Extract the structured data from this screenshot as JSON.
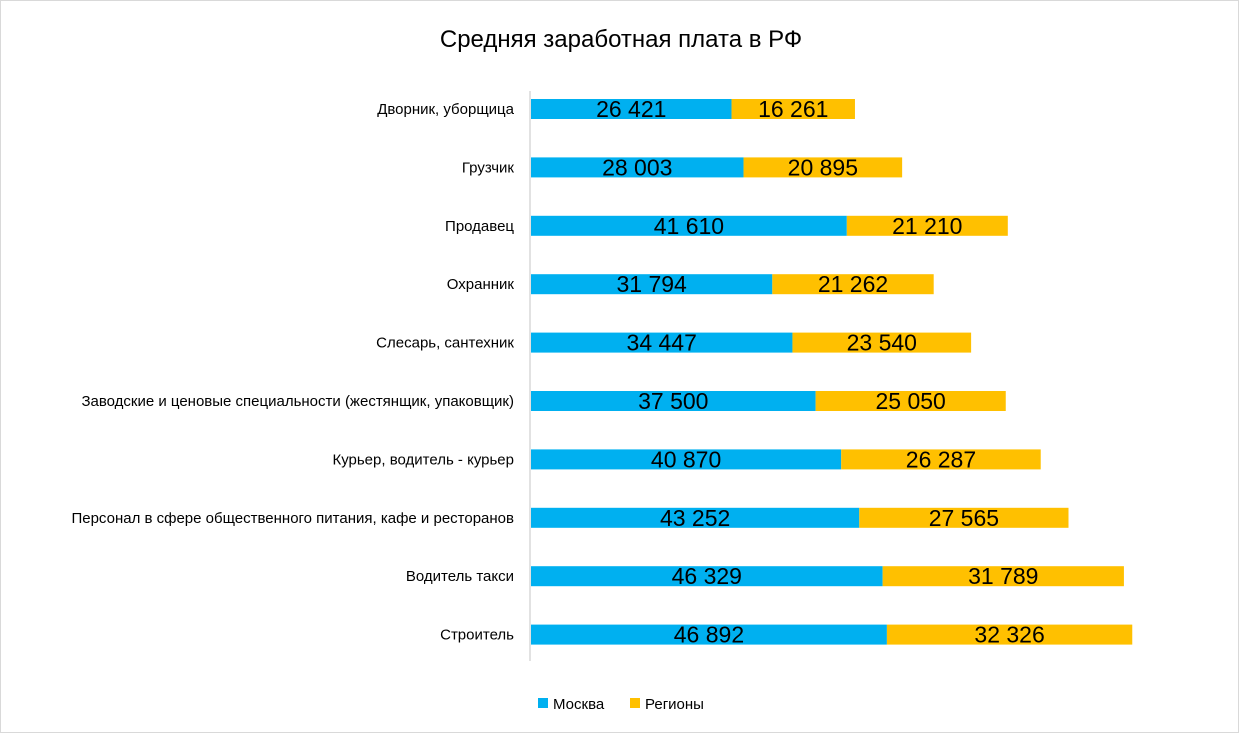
{
  "chart_data": {
    "type": "bar",
    "orientation": "horizontal",
    "stacked": true,
    "title": "Средняя заработная плата в РФ",
    "categories": [
      "Дворник, уборщица",
      "Грузчик",
      "Продавец",
      "Охранник",
      "Слесарь, сантехник",
      "Заводские и ценовые специальности (жестянщик, упаковщик)",
      "Курьер, водитель - курьер",
      "Персонал в сфере общественного питания, кафе и ресторанов",
      "Водитель такси",
      "Строитель"
    ],
    "series": [
      {
        "name": "Москва",
        "color": "#00B0F0",
        "values": [
          26421,
          28003,
          41610,
          31794,
          34447,
          37500,
          40870,
          43252,
          46329,
          46892
        ],
        "labels": [
          "26 421",
          "28 003",
          "41 610",
          "31 794",
          "34 447",
          "37 500",
          "40 870",
          "43 252",
          "46 329",
          "46 892"
        ]
      },
      {
        "name": "Регионы",
        "color": "#FFC000",
        "values": [
          16261,
          20895,
          21210,
          21262,
          23540,
          25050,
          26287,
          27565,
          31789,
          32326
        ],
        "labels": [
          "16 261",
          "20 895",
          "21 210",
          "21 262",
          "23 540",
          "25 050",
          "26 287",
          "27 565",
          "31 789",
          "32 326"
        ]
      }
    ],
    "xlim": [
      0,
      80000
    ],
    "grid": false,
    "legend_position": "bottom"
  }
}
